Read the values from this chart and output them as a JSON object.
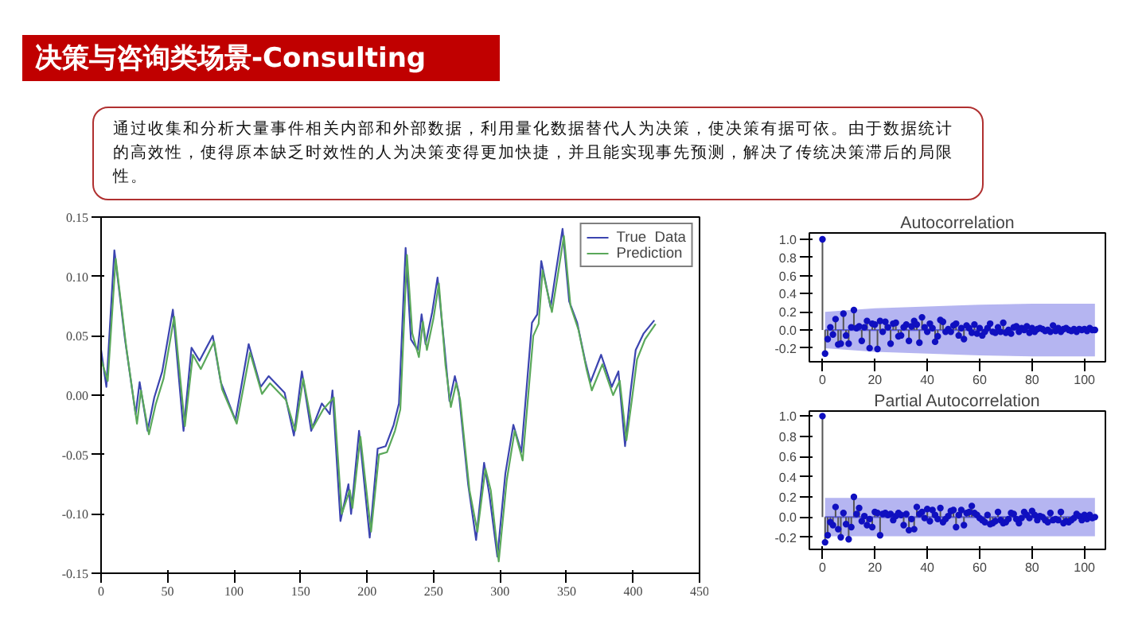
{
  "chart_data": [
    {
      "type": "line",
      "title": "决策与咨询类场景-Consulting",
      "subtitle": "通过收集和分析大量事件相关内部和外部数据，利用量化数据替代人为决策，使决策有据可依。由于数据统计的高效性，使得原本缺乏时效性的人为决策变得更加快捷，并且能实现事先预测，解决了传统决策滞后的局限性。",
      "xlim": [
        0,
        450
      ],
      "ylim": [
        -0.15,
        0.15
      ],
      "xticks": [
        0,
        50,
        100,
        150,
        200,
        250,
        300,
        350,
        400,
        450
      ],
      "yticks": [
        {
          "value": -0.15,
          "label": "-0.15"
        },
        {
          "value": -0.1,
          "label": "-0.10"
        },
        {
          "value": -0.05,
          "label": "-0.05"
        },
        {
          "value": 0,
          "label": "0.00"
        },
        {
          "value": 0.05,
          "label": "0.05"
        },
        {
          "value": 0.1,
          "label": "0.10"
        },
        {
          "value": 0.15,
          "label": "0.15"
        }
      ],
      "grid": false,
      "legend": "top right",
      "line_style": "solid",
      "marker": "none",
      "series": [
        {
          "name": "True  Data",
          "color": "#3b44b0",
          "x": [
            0,
            4,
            10,
            18,
            26,
            29,
            35,
            40,
            46,
            54,
            62,
            68,
            74,
            84,
            90,
            101,
            111,
            120,
            126,
            138,
            145,
            151,
            158,
            166,
            172,
            174,
            180,
            186,
            188,
            194,
            202,
            208,
            214,
            220,
            224,
            229,
            233,
            238,
            241,
            244,
            249,
            253,
            258,
            262,
            266,
            269,
            276,
            282,
            288,
            292,
            298,
            304,
            310,
            316,
            324,
            328,
            331,
            338,
            342,
            347,
            352,
            358,
            364,
            368,
            376,
            384,
            389,
            394,
            398,
            402,
            408,
            416
          ],
          "values": [
            0.038,
            0.007,
            0.122,
            0.047,
            -0.016,
            0.011,
            -0.03,
            -0.002,
            0.02,
            0.072,
            -0.03,
            0.04,
            0.029,
            0.05,
            0.011,
            -0.021,
            0.043,
            0.007,
            0.016,
            0.002,
            -0.034,
            0.02,
            -0.03,
            -0.007,
            -0.016,
            0.004,
            -0.106,
            -0.075,
            -0.1,
            -0.03,
            -0.12,
            -0.045,
            -0.043,
            -0.025,
            -0.007,
            0.124,
            0.047,
            0.038,
            0.068,
            0.043,
            0.07,
            0.099,
            0.043,
            -0.005,
            0.016,
            0.002,
            -0.075,
            -0.122,
            -0.057,
            -0.084,
            -0.136,
            -0.066,
            -0.025,
            -0.048,
            0.061,
            0.068,
            0.113,
            0.074,
            0.104,
            0.14,
            0.079,
            0.061,
            0.029,
            0.011,
            0.034,
            0.007,
            0.02,
            -0.043,
            0.002,
            0.038,
            0.052,
            0.063
          ]
        },
        {
          "name": "Prediction",
          "color": "#5aa85a",
          "x": [
            0,
            5,
            11,
            19,
            27,
            30,
            36,
            41,
            47,
            55,
            63,
            69,
            75,
            85,
            91,
            102,
            112,
            121,
            127,
            139,
            146,
            152,
            159,
            167,
            175,
            181,
            187,
            189,
            195,
            203,
            209,
            215,
            221,
            225,
            230,
            234,
            239,
            242,
            245,
            250,
            254,
            259,
            263,
            267,
            270,
            277,
            283,
            289,
            293,
            299,
            305,
            311,
            317,
            325,
            329,
            332,
            339,
            343,
            348,
            353,
            359,
            365,
            369,
            377,
            385,
            390,
            395,
            399,
            403,
            409,
            417
          ],
          "values": [
            0.03,
            0.012,
            0.115,
            0.04,
            -0.024,
            0.004,
            -0.033,
            -0.008,
            0.014,
            0.066,
            -0.026,
            0.034,
            0.022,
            0.045,
            0.005,
            -0.024,
            0.036,
            0.001,
            0.01,
            -0.004,
            -0.03,
            0.014,
            -0.028,
            -0.012,
            -0.002,
            -0.1,
            -0.08,
            -0.095,
            -0.035,
            -0.115,
            -0.05,
            -0.048,
            -0.03,
            -0.012,
            0.118,
            0.052,
            0.032,
            0.062,
            0.038,
            0.065,
            0.094,
            0.025,
            -0.01,
            0.01,
            -0.004,
            -0.08,
            -0.115,
            -0.062,
            -0.08,
            -0.14,
            -0.072,
            -0.03,
            -0.055,
            0.05,
            0.06,
            0.105,
            0.07,
            0.098,
            0.134,
            0.075,
            0.055,
            0.022,
            0.004,
            0.026,
            0.0,
            0.012,
            -0.038,
            -0.005,
            0.03,
            0.047,
            0.06
          ]
        }
      ]
    },
    {
      "type": "lollipop",
      "title": "Autocorrelation",
      "xlim": [
        -5,
        108
      ],
      "ylim": [
        -0.35,
        1.07
      ],
      "xticks": [
        0,
        20,
        40,
        60,
        80,
        100
      ],
      "yticks": [
        {
          "value": -0.2,
          "label": "-0.2"
        },
        {
          "value": 0,
          "label": "0.0"
        },
        {
          "value": 0.2,
          "label": "0.2"
        },
        {
          "value": 0.4,
          "label": "0.4"
        },
        {
          "value": 0.6,
          "label": "0.6"
        },
        {
          "value": 0.8,
          "label": "0.8"
        },
        {
          "value": 1,
          "label": "1.0"
        }
      ],
      "series": [
        {
          "type": "line",
          "marker": "none",
          "color": "#5a5ae0",
          "x": [
            1,
            20,
            40,
            60,
            80,
            104
          ],
          "values": [
            0,
            0,
            0,
            0,
            0,
            0
          ],
          "lower": [
            -0.2,
            -0.24,
            -0.26,
            -0.28,
            -0.29,
            -0.29
          ],
          "upper": [
            0.2,
            0.24,
            0.26,
            0.28,
            0.29,
            0.29
          ]
        },
        {
          "type": "lollipop",
          "marker": "circle",
          "color": "#1010c0",
          "x": [
            0,
            1,
            2,
            3,
            4,
            5,
            6,
            7,
            8,
            9,
            10,
            11,
            12,
            13,
            14,
            15,
            16,
            17,
            18,
            19,
            20,
            21,
            22,
            23,
            24,
            25,
            26,
            27,
            28,
            29,
            30,
            31,
            32,
            33,
            34,
            35,
            36,
            37,
            38,
            39,
            40,
            41,
            42,
            43,
            44,
            45,
            46,
            47,
            48,
            49,
            50,
            51,
            52,
            53,
            54,
            55,
            56,
            57,
            58,
            59,
            60,
            61,
            62,
            63,
            64,
            65,
            66,
            67,
            68,
            69,
            70,
            71,
            72,
            73,
            74,
            75,
            76,
            77,
            78,
            79,
            80,
            81,
            82,
            83,
            84,
            85,
            86,
            87,
            88,
            89,
            90,
            91,
            92,
            93,
            94,
            95,
            96,
            97,
            98,
            99,
            100,
            101,
            102,
            103,
            104
          ],
          "values": [
            1.0,
            -0.26,
            -0.1,
            0.03,
            -0.05,
            0.12,
            -0.16,
            -0.15,
            0.18,
            -0.06,
            -0.15,
            0.03,
            0.22,
            0.02,
            0.04,
            -0.12,
            0.03,
            0.1,
            -0.2,
            0.07,
            0.06,
            -0.21,
            0.1,
            -0.02,
            0.09,
            0.03,
            -0.15,
            0.07,
            0.08,
            -0.07,
            -0.06,
            0.03,
            0.06,
            -0.12,
            0.04,
            0.1,
            0.06,
            -0.14,
            0.14,
            0.03,
            -0.02,
            0.07,
            0.02,
            -0.13,
            -0.07,
            0.11,
            0.09,
            -0.02,
            0.01,
            -0.02,
            0.05,
            0.07,
            -0.06,
            0.02,
            -0.1,
            0.05,
            0.02,
            -0.03,
            0.06,
            -0.04,
            0.02,
            -0.06,
            -0.02,
            0.02,
            0.07,
            -0.02,
            -0.03,
            0.03,
            -0.02,
            0.08,
            -0.03,
            0.0,
            -0.04,
            0.03,
            0.04,
            -0.02,
            0.02,
            0.0,
            0.04,
            -0.03,
            0.02,
            -0.02,
            0.01,
            0.02,
            0.01,
            -0.01,
            0.0,
            -0.02,
            0.05,
            -0.01,
            0.02,
            -0.02,
            0.01,
            0.02,
            0.0,
            -0.01,
            0.01,
            -0.02,
            0.01,
            0.0,
            0.01,
            -0.01,
            0.02,
            0.0,
            0.0
          ]
        }
      ]
    },
    {
      "type": "lollipop",
      "title": "Partial Autocorrelation",
      "xlim": [
        -5,
        108
      ],
      "ylim": [
        -0.32,
        1.05
      ],
      "xticks": [
        0,
        20,
        40,
        60,
        80,
        100
      ],
      "yticks": [
        {
          "value": -0.2,
          "label": "-0.2"
        },
        {
          "value": 0,
          "label": "0.0"
        },
        {
          "value": 0.2,
          "label": "0.2"
        },
        {
          "value": 0.4,
          "label": "0.4"
        },
        {
          "value": 0.6,
          "label": "0.6"
        },
        {
          "value": 0.8,
          "label": "0.8"
        },
        {
          "value": 1,
          "label": "1.0"
        }
      ],
      "series": [
        {
          "type": "line",
          "marker": "none",
          "color": "#5a5ae0",
          "x": [
            1,
            104
          ],
          "values": [
            0,
            0
          ],
          "lower": [
            -0.19,
            -0.19
          ],
          "upper": [
            0.19,
            0.19
          ]
        },
        {
          "type": "lollipop",
          "marker": "circle",
          "color": "#1010c0",
          "x": [
            0,
            1,
            2,
            3,
            4,
            5,
            6,
            7,
            8,
            9,
            10,
            11,
            12,
            13,
            14,
            15,
            16,
            17,
            18,
            19,
            20,
            21,
            22,
            23,
            24,
            25,
            26,
            27,
            28,
            29,
            30,
            31,
            32,
            33,
            34,
            35,
            36,
            37,
            38,
            39,
            40,
            41,
            42,
            43,
            44,
            45,
            46,
            47,
            48,
            49,
            50,
            51,
            52,
            53,
            54,
            55,
            56,
            57,
            58,
            59,
            60,
            61,
            62,
            63,
            64,
            65,
            66,
            67,
            68,
            69,
            70,
            71,
            72,
            73,
            74,
            75,
            76,
            77,
            78,
            79,
            80,
            81,
            82,
            83,
            84,
            85,
            86,
            87,
            88,
            89,
            90,
            91,
            92,
            93,
            94,
            95,
            96,
            97,
            98,
            99,
            100,
            101,
            102,
            103,
            104
          ],
          "values": [
            1.0,
            -0.25,
            -0.18,
            -0.05,
            -0.08,
            0.1,
            -0.12,
            -0.2,
            0.04,
            -0.07,
            -0.22,
            -0.1,
            0.2,
            0.03,
            0.09,
            -0.04,
            0.01,
            -0.08,
            -0.02,
            -0.1,
            0.05,
            0.04,
            -0.18,
            0.03,
            0.04,
            0.02,
            0.03,
            -0.03,
            0.01,
            0.04,
            0.02,
            -0.08,
            0.03,
            -0.13,
            -0.02,
            -0.12,
            0.1,
            0.03,
            0.05,
            -0.01,
            0.08,
            -0.04,
            0.07,
            0.02,
            -0.02,
            0.09,
            -0.05,
            -0.02,
            0.01,
            0.06,
            0.07,
            -0.1,
            0.02,
            0.07,
            -0.08,
            0.04,
            0.05,
            0.11,
            0.04,
            0.02,
            -0.01,
            -0.03,
            -0.05,
            0.02,
            -0.07,
            -0.06,
            -0.04,
            0.05,
            -0.03,
            -0.06,
            -0.05,
            -0.02,
            0.04,
            0.03,
            -0.02,
            -0.06,
            -0.01,
            0.05,
            0.02,
            -0.01,
            0.06,
            0.02,
            -0.03,
            0.01,
            0.0,
            -0.03,
            -0.05,
            0.04,
            -0.03,
            -0.02,
            -0.03,
            0.05,
            -0.06,
            -0.04,
            -0.05,
            -0.03,
            -0.01,
            0.03,
            0.01,
            -0.03,
            0.02,
            -0.02,
            0.02,
            -0.01,
            0.0
          ]
        }
      ]
    }
  ]
}
